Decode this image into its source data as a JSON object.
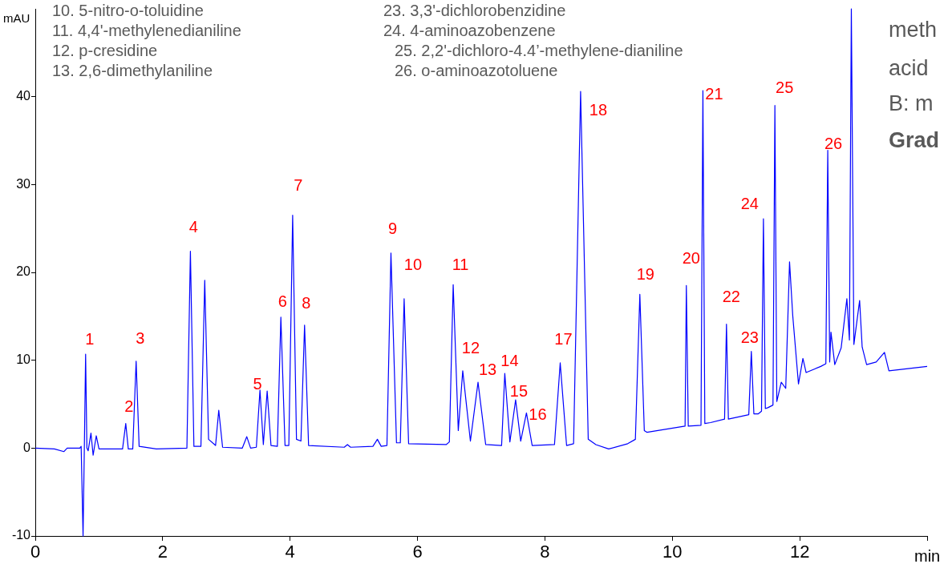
{
  "chart_data": {
    "type": "line",
    "xlabel": "min",
    "ylabel": "mAU",
    "color": "#0000ff",
    "x": [
      0,
      0.3,
      0.45,
      0.5,
      0.7,
      0.72,
      0.75,
      0.77,
      0.79,
      0.81,
      0.83,
      0.874,
      0.908,
      0.957,
      1.0,
      1.2,
      1.37,
      1.42,
      1.46,
      1.53,
      1.583,
      1.63,
      1.9,
      2.38,
      2.435,
      2.49,
      2.6,
      2.66,
      2.72,
      2.83,
      2.88,
      2.94,
      3.25,
      3.32,
      3.38,
      3.47,
      3.527,
      3.58,
      3.64,
      3.7,
      3.8,
      3.855,
      3.92,
      3.98,
      4.04,
      4.1,
      4.17,
      4.227,
      4.29,
      4.85,
      4.9,
      4.95,
      5.3,
      5.37,
      5.43,
      5.52,
      5.583,
      5.67,
      5.73,
      5.79,
      5.86,
      6.45,
      6.5,
      6.56,
      6.64,
      6.71,
      6.83,
      6.95,
      7.07,
      7.32,
      7.37,
      7.45,
      7.54,
      7.62,
      7.71,
      7.8,
      8.15,
      8.24,
      8.34,
      8.45,
      8.56,
      8.68,
      8.8,
      9.0,
      9.3,
      9.42,
      9.49,
      9.56,
      9.6,
      10.2,
      10.22,
      10.25,
      10.45,
      10.48,
      10.51,
      10.6,
      10.82,
      10.85,
      10.88,
      11.2,
      11.24,
      11.28,
      11.35,
      11.4,
      11.43,
      11.46,
      11.5,
      11.58,
      11.61,
      11.64,
      11.71,
      11.78,
      11.84,
      11.89,
      11.98,
      12.05,
      12.1,
      12.33,
      12.41,
      12.44,
      12.47,
      12.49,
      12.55,
      12.65,
      12.74,
      12.78,
      12.81,
      12.85,
      12.94,
      12.98,
      13.05,
      13.2,
      13.33,
      13.4,
      14.0
    ],
    "values": [
      0,
      -0.1,
      -0.4,
      0,
      0,
      0.2,
      -10,
      0,
      10.7,
      0,
      -0.3,
      1.7,
      -0.8,
      1.4,
      -0.1,
      -0.1,
      -0.1,
      2.8,
      -0.1,
      -0.1,
      9.9,
      0.2,
      -0.1,
      0,
      22.4,
      0.2,
      0.2,
      19.1,
      1.0,
      0.3,
      4.3,
      0.1,
      0,
      1.3,
      0,
      0.1,
      6.6,
      0.4,
      6.5,
      0.3,
      0.2,
      14.9,
      0.3,
      0.3,
      26.5,
      1.0,
      0.8,
      14.0,
      0.3,
      0.1,
      0.4,
      0.1,
      0.2,
      1.0,
      0.2,
      0.3,
      22.2,
      0.6,
      0.6,
      17.0,
      0.5,
      0.4,
      0.7,
      18.6,
      2.0,
      8.8,
      0.8,
      7.5,
      0.4,
      0.3,
      8.5,
      0.7,
      5.5,
      0.8,
      4.0,
      0.3,
      0.4,
      9.7,
      0.3,
      0.5,
      40.6,
      1.0,
      0.4,
      -0.1,
      0.5,
      1.0,
      17.5,
      2.0,
      1.8,
      2.5,
      18.5,
      2.5,
      2.6,
      40.7,
      2.8,
      2.9,
      3.3,
      14.1,
      3.3,
      3.8,
      11.0,
      3.9,
      3.9,
      4.2,
      26.1,
      4.5,
      4.6,
      4.9,
      39.0,
      5.3,
      7.5,
      6.8,
      21.2,
      15.1,
      7.3,
      10.2,
      8.6,
      9.3,
      9.6,
      33.9,
      9.8,
      13.2,
      9.5,
      11.4,
      17.0,
      12.3,
      50,
      11.8,
      16.8,
      11.5,
      9.5,
      9.8,
      10.9,
      8.8,
      9.3
    ],
    "xlim": [
      0,
      14
    ],
    "xticks": [
      0,
      2,
      4,
      6,
      8,
      10,
      12,
      {
        "value": 14,
        "label": null
      }
    ],
    "ylim": [
      -10,
      50
    ],
    "yticks": [
      -10,
      0,
      10,
      20,
      30,
      40
    ],
    "annotations": [
      "10. 5-nitro-o-toluidine",
      "11. 4,4'-methylenedianiline",
      "12. p-cresidine",
      "13. 2,6-dimethylaniline",
      "23. 3,3'-dichlorobenzidine",
      "24. 4-aminoazobenzene",
      "25. 2,2'-dichloro-4.4’-methylene-dianiline",
      "26. o-aminoazotoluene",
      "meth",
      "acid",
      "B: m",
      "Grad",
      {
        "text": "1",
        "x": 0.79,
        "y": 10.7
      },
      {
        "text": "2",
        "x": 1.42,
        "y": 2.8
      },
      {
        "text": "3",
        "x": 1.583,
        "y": 9.9
      },
      {
        "text": "4",
        "x": 2.435,
        "y": 22.4
      },
      {
        "text": "5",
        "x": 3.527,
        "y": 6.6
      },
      {
        "text": "6",
        "x": 3.855,
        "y": 14.9
      },
      {
        "text": "7",
        "x": 4.04,
        "y": 26.5
      },
      {
        "text": "8",
        "x": 4.227,
        "y": 14.0
      },
      {
        "text": "9",
        "x": 5.583,
        "y": 22.2
      },
      {
        "text": "10",
        "x": 5.79,
        "y": 17.0
      },
      {
        "text": "11",
        "x": 6.56,
        "y": 18.6
      },
      {
        "text": "12",
        "x": 6.71,
        "y": 8.8
      },
      {
        "text": "13",
        "x": 6.95,
        "y": 7.5
      },
      {
        "text": "14",
        "x": 7.37,
        "y": 8.5
      },
      {
        "text": "15",
        "x": 7.54,
        "y": 5.5
      },
      {
        "text": "16",
        "x": 7.71,
        "y": 4.0
      },
      {
        "text": "17",
        "x": 8.24,
        "y": 9.7
      },
      {
        "text": "18",
        "x": 8.56,
        "y": 40.6
      },
      {
        "text": "19",
        "x": 9.49,
        "y": 17.5
      },
      {
        "text": "20",
        "x": 10.22,
        "y": 18.5
      },
      {
        "text": "21",
        "x": 10.48,
        "y": 40.7
      },
      {
        "text": "22",
        "x": 10.85,
        "y": 14.1
      },
      {
        "text": "23",
        "x": 11.24,
        "y": 11.0
      },
      {
        "text": "24",
        "x": 11.43,
        "y": 26.1
      },
      {
        "text": "25",
        "x": 11.61,
        "y": 39.0
      },
      {
        "text": "26",
        "x": 12.44,
        "y": 33.9
      }
    ]
  }
}
